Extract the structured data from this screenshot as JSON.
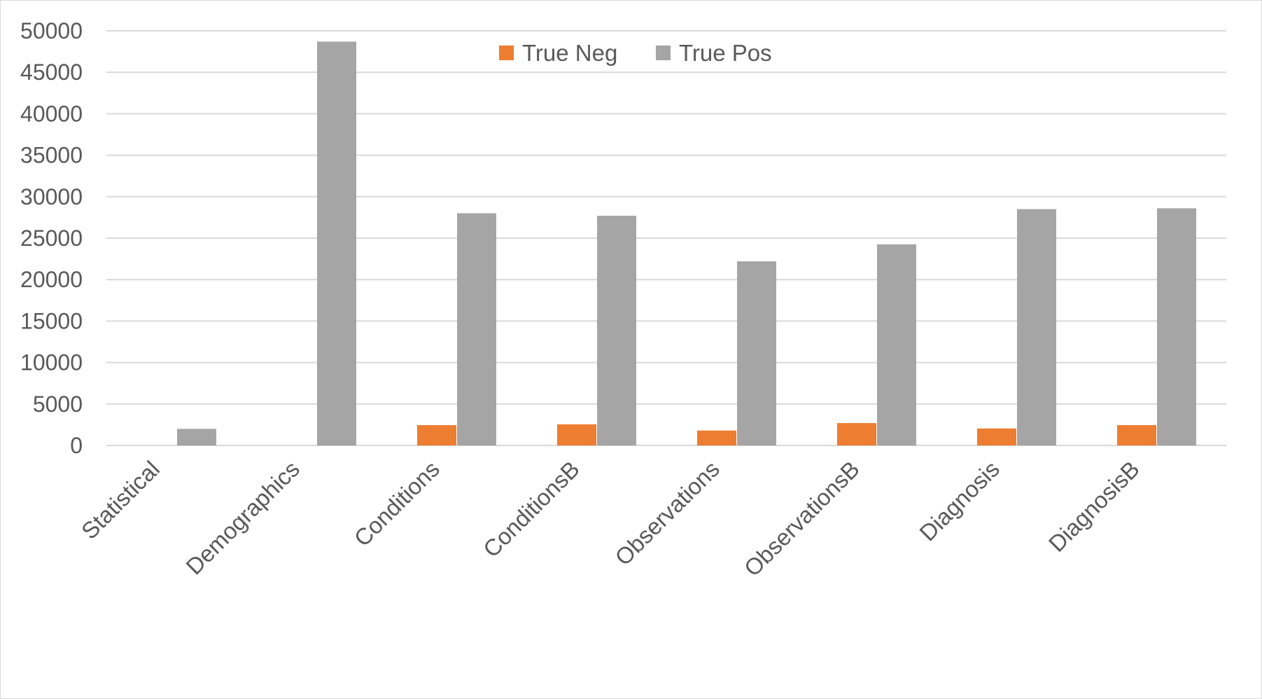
{
  "chart_data": {
    "type": "bar",
    "title": "",
    "xlabel": "",
    "ylabel": "",
    "ylim": [
      0,
      50000
    ],
    "yticks": [
      0,
      5000,
      10000,
      15000,
      20000,
      25000,
      30000,
      35000,
      40000,
      45000,
      50000
    ],
    "grid": true,
    "legend_position": "top-center",
    "categories": [
      "Statistical",
      "Demographics",
      "Conditions",
      "ConditionsB",
      "Observations",
      "ObservationsB",
      "Diagnosis",
      "DiagnosisB"
    ],
    "series": [
      {
        "name": "True Neg",
        "color": "#ed7d31",
        "values": [
          0,
          0,
          2450,
          2550,
          1800,
          2700,
          2050,
          2450
        ]
      },
      {
        "name": "True Pos",
        "color": "#a5a5a5",
        "values": [
          2000,
          48700,
          28000,
          27700,
          22200,
          24250,
          28500,
          28600
        ]
      }
    ]
  }
}
